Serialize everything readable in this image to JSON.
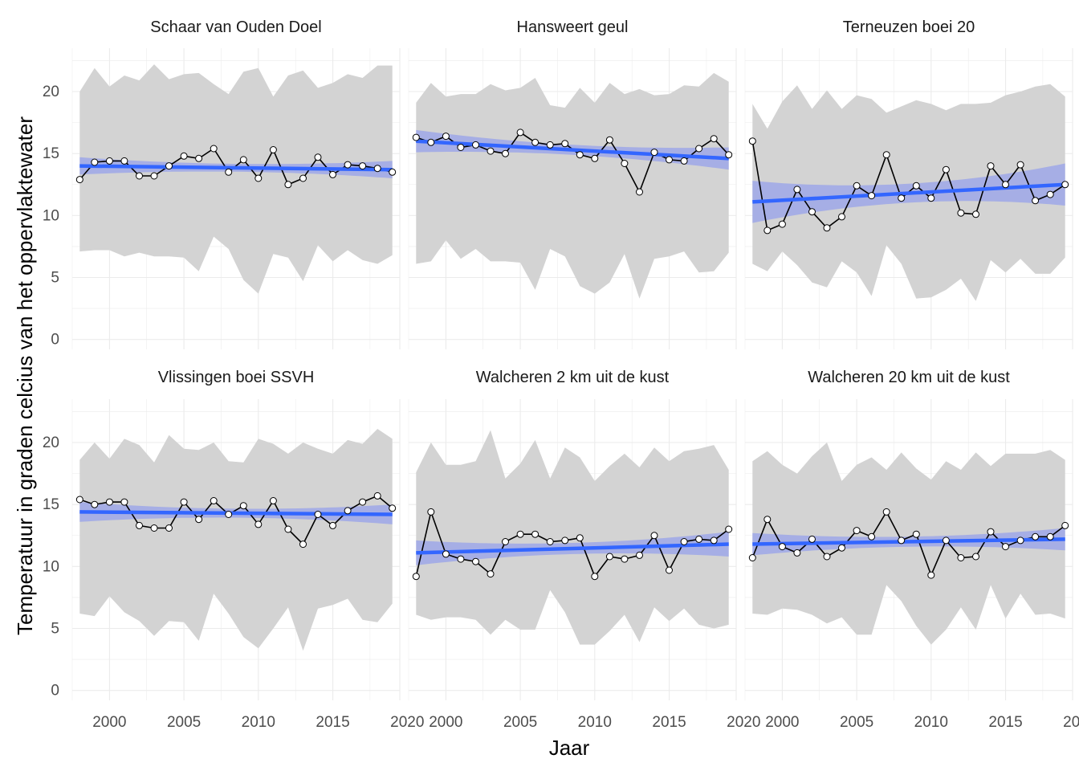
{
  "chart_data": {
    "type": "line",
    "xlabel": "Jaar",
    "ylabel": "Temperatuur in graden celcius van het oppervlaktewater",
    "xlim": [
      1997.5,
      2019.5
    ],
    "ylim": [
      -0.8,
      23.5
    ],
    "x_ticks": [
      2000,
      2005,
      2010,
      2015,
      2020
    ],
    "y_ticks": [
      0,
      5,
      10,
      15,
      20
    ],
    "grid": true,
    "legend": "none",
    "colors": {
      "ribbon": "#d3d3d3",
      "trend": "#3366ff",
      "trend_ci": "#9da7e8",
      "line": "#000000",
      "points": "#ffffff"
    },
    "years": [
      1998,
      1999,
      2000,
      2001,
      2002,
      2003,
      2004,
      2005,
      2006,
      2007,
      2008,
      2009,
      2010,
      2011,
      2012,
      2013,
      2014,
      2015,
      2016,
      2017,
      2018,
      2019
    ],
    "panels": [
      {
        "title": "Schaar van Ouden Doel",
        "mean": [
          12.9,
          14.3,
          14.4,
          14.4,
          13.2,
          13.2,
          14.0,
          14.8,
          14.6,
          15.4,
          13.5,
          14.5,
          13.0,
          15.3,
          12.5,
          13.0,
          14.7,
          13.3,
          14.1,
          14.0,
          13.8,
          13.5
        ],
        "max": [
          20.0,
          21.9,
          20.4,
          21.3,
          20.9,
          22.2,
          21.0,
          21.4,
          21.5,
          20.6,
          19.8,
          21.6,
          21.9,
          19.6,
          21.3,
          21.7,
          20.3,
          20.7,
          21.4,
          21.1,
          22.1,
          22.1
        ],
        "min": [
          7.1,
          7.2,
          7.2,
          6.7,
          7.0,
          6.7,
          6.7,
          6.6,
          5.5,
          8.3,
          7.3,
          4.8,
          3.7,
          6.9,
          6.6,
          4.7,
          7.6,
          6.3,
          7.2,
          6.4,
          6.1,
          6.8
        ],
        "trend": [
          14.0,
          13.7
        ],
        "ci_width": 0.7
      },
      {
        "title": "Hansweert geul",
        "mean": [
          16.3,
          15.9,
          16.4,
          15.5,
          15.7,
          15.2,
          15.0,
          16.7,
          15.9,
          15.7,
          15.8,
          14.9,
          14.6,
          16.1,
          14.2,
          11.9,
          15.1,
          14.5,
          14.4,
          15.4,
          16.2,
          14.9
        ],
        "max": [
          19.1,
          20.7,
          19.6,
          19.8,
          19.8,
          20.6,
          20.1,
          20.3,
          21.1,
          18.9,
          18.7,
          20.3,
          19.1,
          20.7,
          19.8,
          20.2,
          19.7,
          19.8,
          20.5,
          20.4,
          21.5,
          20.8
        ],
        "min": [
          6.1,
          6.3,
          8.0,
          6.5,
          7.3,
          6.3,
          6.3,
          6.2,
          4.0,
          7.3,
          6.7,
          4.3,
          3.7,
          4.6,
          6.9,
          3.3,
          6.5,
          6.7,
          7.1,
          5.4,
          5.5,
          7.0
        ],
        "trend": [
          16.0,
          14.6
        ],
        "ci_width": 0.9
      },
      {
        "title": "Terneuzen boei 20",
        "mean": [
          16.0,
          8.8,
          9.3,
          12.1,
          10.3,
          9.0,
          9.9,
          12.4,
          11.6,
          14.9,
          11.4,
          12.4,
          11.4,
          13.7,
          10.2,
          10.1,
          14.0,
          12.5,
          14.1,
          11.2,
          11.7,
          12.5
        ],
        "max": [
          19.0,
          17.0,
          19.2,
          20.5,
          18.6,
          20.1,
          18.6,
          19.7,
          19.4,
          18.3,
          18.8,
          19.3,
          19.0,
          18.5,
          19.0,
          19.0,
          19.1,
          19.7,
          20.0,
          20.4,
          20.6,
          19.6
        ],
        "min": [
          6.1,
          5.5,
          7.1,
          6.0,
          4.6,
          4.2,
          6.3,
          5.4,
          3.5,
          7.6,
          6.1,
          3.3,
          3.4,
          4.0,
          4.9,
          3.1,
          6.4,
          5.4,
          6.5,
          5.3,
          5.3,
          6.6
        ],
        "trend": [
          11.1,
          12.5
        ],
        "ci_width": 1.7
      },
      {
        "title": "Vlissingen boei SSVH",
        "mean": [
          15.4,
          15.0,
          15.2,
          15.2,
          13.3,
          13.1,
          13.1,
          15.2,
          13.8,
          15.3,
          14.2,
          14.9,
          13.4,
          15.3,
          13.0,
          11.8,
          14.2,
          13.3,
          14.5,
          15.2,
          15.7,
          14.7
        ],
        "max": [
          18.6,
          20.0,
          18.7,
          20.3,
          19.8,
          18.4,
          20.6,
          19.5,
          19.4,
          20.0,
          18.5,
          18.4,
          20.3,
          19.9,
          19.1,
          20.0,
          19.5,
          19.1,
          20.2,
          19.9,
          21.1,
          20.3
        ],
        "min": [
          6.2,
          6.0,
          7.6,
          6.3,
          5.6,
          4.4,
          5.6,
          5.5,
          4.0,
          7.8,
          6.2,
          4.3,
          3.4,
          5.0,
          6.7,
          3.2,
          6.6,
          6.9,
          7.4,
          5.7,
          5.5,
          7.0
        ],
        "trend": [
          14.4,
          14.2
        ],
        "ci_width": 0.8
      },
      {
        "title": "Walcheren 2 km uit de kust",
        "mean": [
          9.2,
          14.4,
          11.0,
          10.6,
          10.4,
          9.4,
          12.0,
          12.6,
          12.6,
          12.0,
          12.1,
          12.3,
          9.2,
          10.8,
          10.6,
          10.9,
          12.5,
          9.7,
          12.0,
          12.2,
          12.1,
          13.0
        ],
        "max": [
          17.6,
          20.0,
          18.2,
          18.2,
          18.5,
          21.0,
          17.1,
          18.3,
          20.2,
          17.1,
          19.6,
          18.8,
          16.9,
          18.1,
          19.1,
          18.0,
          19.6,
          18.5,
          19.3,
          19.5,
          19.8,
          17.8
        ],
        "min": [
          6.1,
          5.7,
          5.9,
          5.9,
          5.7,
          4.5,
          5.7,
          4.9,
          4.9,
          8.1,
          6.3,
          3.7,
          3.7,
          4.8,
          6.1,
          3.9,
          6.7,
          5.6,
          6.6,
          5.3,
          5.0,
          5.3
        ],
        "trend": [
          11.1,
          11.8
        ],
        "ci_width": 1.0
      },
      {
        "title": "Walcheren 20 km uit de kust",
        "mean": [
          10.7,
          13.8,
          11.6,
          11.1,
          12.2,
          10.8,
          11.5,
          12.9,
          12.4,
          14.4,
          12.1,
          12.6,
          9.3,
          12.1,
          10.7,
          10.8,
          12.8,
          11.6,
          12.1,
          12.4,
          12.4,
          13.3
        ],
        "max": [
          18.5,
          19.3,
          18.2,
          17.5,
          18.9,
          20.0,
          16.9,
          18.2,
          18.8,
          17.8,
          19.2,
          17.9,
          17.0,
          18.5,
          17.8,
          19.2,
          18.1,
          19.1,
          19.1,
          19.1,
          19.4,
          18.6
        ],
        "min": [
          6.2,
          6.1,
          6.6,
          6.5,
          6.1,
          5.4,
          5.9,
          4.5,
          4.5,
          8.5,
          7.2,
          5.2,
          3.7,
          4.9,
          6.7,
          4.9,
          8.5,
          5.8,
          7.8,
          6.1,
          6.2,
          5.8
        ],
        "trend": [
          11.8,
          12.2
        ],
        "ci_width": 0.9
      }
    ]
  }
}
